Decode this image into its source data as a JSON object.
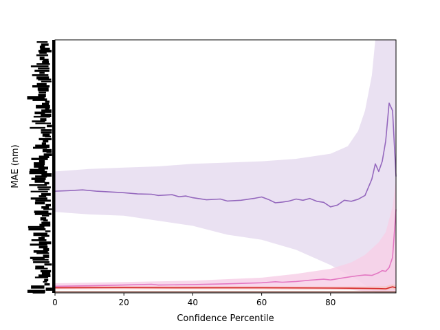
{
  "chart_data": {
    "type": "line",
    "title": "",
    "xlabel": "Confidence Percentile",
    "ylabel": "MAE (nm)",
    "xlim": [
      0,
      99
    ],
    "ylim": [
      0,
      100
    ],
    "x_ticks": [
      0,
      20,
      40,
      60,
      80
    ],
    "y_tick_labels_legible": false,
    "grid": false,
    "legend": "none",
    "series": [
      {
        "color": "#9467bd",
        "band_color": "#e6dcf0",
        "points": [
          [
            0,
            40.2
          ],
          [
            4,
            40.4
          ],
          [
            8,
            40.7
          ],
          [
            12,
            40.2
          ],
          [
            16,
            39.9
          ],
          [
            20,
            39.6
          ],
          [
            24,
            39.1
          ],
          [
            28,
            39.0
          ],
          [
            30,
            38.5
          ],
          [
            34,
            38.8
          ],
          [
            36,
            38.0
          ],
          [
            38,
            38.3
          ],
          [
            40,
            37.6
          ],
          [
            44,
            36.8
          ],
          [
            48,
            37.1
          ],
          [
            50,
            36.3
          ],
          [
            54,
            36.6
          ],
          [
            56,
            37.0
          ],
          [
            58,
            37.4
          ],
          [
            60,
            37.9
          ],
          [
            62,
            36.9
          ],
          [
            64,
            35.6
          ],
          [
            66,
            35.9
          ],
          [
            68,
            36.3
          ],
          [
            70,
            37.1
          ],
          [
            72,
            36.6
          ],
          [
            74,
            37.3
          ],
          [
            76,
            36.2
          ],
          [
            78,
            35.8
          ],
          [
            80,
            34.0
          ],
          [
            82,
            34.7
          ],
          [
            84,
            36.6
          ],
          [
            86,
            36.2
          ],
          [
            88,
            37.0
          ],
          [
            90,
            38.5
          ],
          [
            92,
            45.0
          ],
          [
            93,
            51.0
          ],
          [
            94,
            48.0
          ],
          [
            95,
            52.0
          ],
          [
            96,
            60.0
          ],
          [
            97,
            75.0
          ],
          [
            98,
            72.0
          ],
          [
            99,
            46.0
          ]
        ],
        "upper": [
          [
            0,
            48.0
          ],
          [
            10,
            49.0
          ],
          [
            20,
            49.5
          ],
          [
            30,
            50.0
          ],
          [
            40,
            51.0
          ],
          [
            50,
            51.5
          ],
          [
            60,
            52.0
          ],
          [
            70,
            53.0
          ],
          [
            80,
            55.0
          ],
          [
            85,
            58.0
          ],
          [
            88,
            64.0
          ],
          [
            90,
            72.0
          ],
          [
            92,
            86.0
          ],
          [
            93,
            100
          ],
          [
            99,
            100
          ]
        ],
        "lower": [
          [
            0,
            32.0
          ],
          [
            10,
            31.0
          ],
          [
            20,
            30.5
          ],
          [
            30,
            28.5
          ],
          [
            40,
            26.5
          ],
          [
            50,
            23.0
          ],
          [
            60,
            21.0
          ],
          [
            70,
            17.0
          ],
          [
            75,
            14.0
          ],
          [
            80,
            11.0
          ],
          [
            84,
            8.0
          ],
          [
            88,
            5.0
          ],
          [
            91,
            2.0
          ],
          [
            93,
            0.0
          ],
          [
            99,
            0.0
          ]
        ]
      },
      {
        "color": "#e377c2",
        "band_color": "#f7d0e8",
        "points": [
          [
            0,
            2.6
          ],
          [
            10,
            2.8
          ],
          [
            20,
            3.1
          ],
          [
            28,
            3.4
          ],
          [
            30,
            3.1
          ],
          [
            40,
            3.3
          ],
          [
            50,
            3.6
          ],
          [
            60,
            4.0
          ],
          [
            64,
            4.4
          ],
          [
            66,
            4.2
          ],
          [
            70,
            4.5
          ],
          [
            74,
            5.0
          ],
          [
            78,
            5.4
          ],
          [
            80,
            5.1
          ],
          [
            84,
            6.0
          ],
          [
            88,
            6.8
          ],
          [
            90,
            7.1
          ],
          [
            92,
            6.9
          ],
          [
            94,
            8.0
          ],
          [
            95,
            8.8
          ],
          [
            96,
            8.5
          ],
          [
            97,
            10.0
          ],
          [
            98,
            14.0
          ],
          [
            99,
            33.0
          ]
        ],
        "upper": [
          [
            0,
            3.8
          ],
          [
            20,
            4.3
          ],
          [
            40,
            4.8
          ],
          [
            60,
            6.0
          ],
          [
            70,
            7.5
          ],
          [
            80,
            9.5
          ],
          [
            86,
            12.0
          ],
          [
            90,
            15.0
          ],
          [
            94,
            20.0
          ],
          [
            96,
            24.0
          ],
          [
            98,
            34.0
          ],
          [
            99,
            45.0
          ]
        ],
        "lower": [
          [
            0,
            1.6
          ],
          [
            20,
            1.8
          ],
          [
            40,
            2.0
          ],
          [
            60,
            2.1
          ],
          [
            70,
            2.0
          ],
          [
            80,
            1.6
          ],
          [
            86,
            1.2
          ],
          [
            90,
            0.6
          ],
          [
            94,
            0.2
          ],
          [
            99,
            0.0
          ]
        ]
      },
      {
        "color": "#d62728",
        "band_color": "#f4c4c4",
        "points": [
          [
            0,
            2.0
          ],
          [
            20,
            2.1
          ],
          [
            40,
            2.0
          ],
          [
            60,
            2.0
          ],
          [
            80,
            1.9
          ],
          [
            90,
            1.8
          ],
          [
            94,
            1.7
          ],
          [
            96,
            1.6
          ],
          [
            98,
            2.4
          ],
          [
            99,
            2.0
          ]
        ],
        "upper": [
          [
            0,
            2.6
          ],
          [
            50,
            2.6
          ],
          [
            90,
            2.5
          ],
          [
            96,
            2.6
          ],
          [
            98,
            3.4
          ],
          [
            99,
            3.0
          ]
        ],
        "lower": [
          [
            0,
            1.4
          ],
          [
            50,
            1.4
          ],
          [
            90,
            1.2
          ],
          [
            96,
            1.0
          ],
          [
            98,
            1.4
          ],
          [
            99,
            1.0
          ]
        ]
      },
      {
        "color": "#8c564b",
        "band_color": "#e8d6d0",
        "points": [
          [
            0,
            0.4
          ],
          [
            50,
            0.4
          ],
          [
            99,
            0.4
          ]
        ],
        "upper": [
          [
            0,
            0.6
          ],
          [
            99,
            0.6
          ]
        ],
        "lower": [
          [
            0,
            0.2
          ],
          [
            99,
            0.2
          ]
        ]
      }
    ]
  }
}
